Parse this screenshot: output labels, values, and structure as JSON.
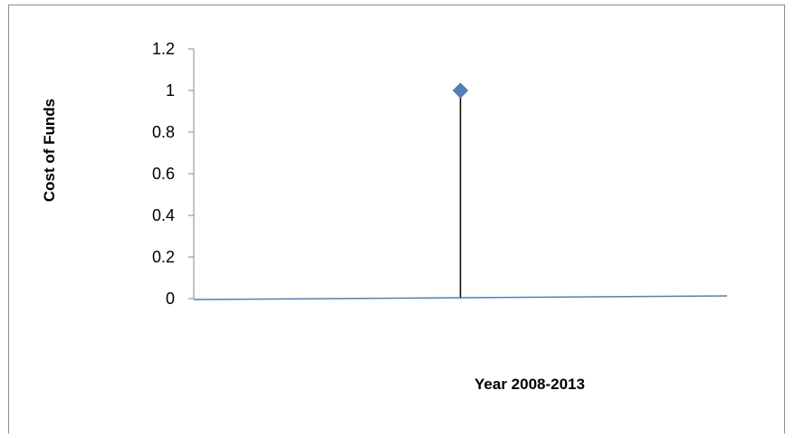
{
  "chart_data": {
    "type": "scatter",
    "title": "",
    "xlabel": "Year 2008-2013",
    "ylabel": "Cost of Funds",
    "ylim": [
      0,
      1.2
    ],
    "y_ticks": [
      0,
      0.2,
      0.4,
      0.6,
      0.8,
      1,
      1.2
    ],
    "y_tick_labels": [
      "0",
      "0.2",
      "0.4",
      "0.6",
      "0.8",
      "1",
      "1.2"
    ],
    "xlim": [
      0,
      2
    ],
    "grid": false,
    "legend": "none",
    "series": [
      {
        "points": [
          {
            "x": 1,
            "y": 1
          }
        ],
        "marker": "diamond",
        "color": "#4f81bd",
        "drop_line_color": "#000000"
      },
      {
        "type": "line",
        "points": [
          {
            "x": 0,
            "y": 0
          },
          {
            "x": 2,
            "y": 0
          }
        ],
        "color": "#4f81bd"
      }
    ]
  }
}
